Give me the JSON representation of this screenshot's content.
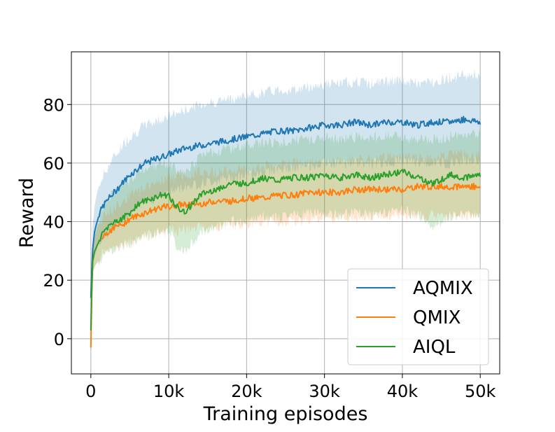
{
  "chart_data": {
    "type": "line",
    "title": "",
    "xlabel": "Training episodes",
    "ylabel": "Reward",
    "xlim": [
      -2500,
      52500
    ],
    "ylim": [
      -12,
      98
    ],
    "grid": true,
    "legend_position": "bottom-right",
    "x_ticks": [
      0,
      10000,
      20000,
      30000,
      40000,
      50000
    ],
    "x_tick_labels": [
      "0",
      "10k",
      "20k",
      "30k",
      "40k",
      "50k"
    ],
    "y_ticks": [
      0,
      20,
      40,
      60,
      80
    ],
    "y_tick_labels": [
      "0",
      "20",
      "40",
      "60",
      "80"
    ],
    "series": [
      {
        "name": "AQMIX",
        "color": "#1f77b4",
        "x": [
          0,
          200,
          500,
          1000,
          1500,
          2000,
          3000,
          4000,
          5000,
          6000,
          7000,
          8000,
          9000,
          10000,
          12000,
          14000,
          16000,
          18000,
          20000,
          22000,
          24000,
          26000,
          28000,
          30000,
          32000,
          34000,
          36000,
          38000,
          40000,
          42000,
          44000,
          46000,
          48000,
          50000
        ],
        "y": [
          14,
          30,
          37,
          42,
          45,
          47,
          50,
          53,
          56,
          58,
          60,
          61,
          62,
          63,
          65,
          66,
          67,
          68,
          69,
          70,
          71,
          71,
          72,
          73,
          73,
          74,
          73,
          74,
          74,
          73,
          74,
          74,
          75,
          74
        ],
        "upper": [
          16,
          38,
          46,
          52,
          55,
          58,
          62,
          66,
          69,
          71,
          73,
          74,
          75,
          76,
          78,
          80,
          81,
          82,
          83,
          84,
          85,
          85,
          86,
          87,
          87,
          88,
          87,
          88,
          88,
          87,
          88,
          89,
          90,
          90
        ],
        "lower": [
          12,
          24,
          29,
          32,
          35,
          36,
          38,
          40,
          43,
          45,
          47,
          48,
          49,
          50,
          52,
          53,
          54,
          55,
          56,
          57,
          58,
          58,
          59,
          60,
          60,
          60,
          60,
          60,
          61,
          60,
          60,
          60,
          61,
          60
        ]
      },
      {
        "name": "QMIX",
        "color": "#ff7f0e",
        "x": [
          0,
          200,
          500,
          1000,
          1500,
          2000,
          3000,
          4000,
          5000,
          6000,
          7000,
          8000,
          9000,
          10000,
          12000,
          14000,
          16000,
          18000,
          20000,
          22000,
          24000,
          26000,
          28000,
          30000,
          32000,
          34000,
          36000,
          38000,
          40000,
          42000,
          44000,
          46000,
          48000,
          50000
        ],
        "y": [
          -3,
          26,
          30,
          33,
          35,
          36,
          38,
          39,
          41,
          42,
          43,
          44,
          45,
          45,
          46,
          46,
          47,
          47,
          48,
          48,
          49,
          49,
          50,
          50,
          50,
          51,
          51,
          51,
          51,
          52,
          52,
          52,
          52,
          52
        ],
        "upper": [
          0,
          30,
          35,
          39,
          41,
          43,
          45,
          47,
          49,
          50,
          52,
          53,
          54,
          55,
          56,
          57,
          57,
          58,
          58,
          59,
          59,
          60,
          60,
          60,
          61,
          61,
          61,
          62,
          62,
          62,
          62,
          63,
          63,
          63
        ],
        "lower": [
          -5,
          22,
          25,
          27,
          29,
          30,
          31,
          32,
          33,
          34,
          35,
          36,
          36,
          37,
          37,
          38,
          38,
          39,
          39,
          40,
          40,
          40,
          41,
          41,
          41,
          41,
          42,
          42,
          42,
          42,
          42,
          42,
          42,
          42
        ]
      },
      {
        "name": "AIQL",
        "color": "#2ca02c",
        "x": [
          0,
          200,
          500,
          1000,
          1500,
          2000,
          3000,
          4000,
          5000,
          6000,
          7000,
          8000,
          9000,
          10000,
          11000,
          12000,
          13000,
          14000,
          16000,
          18000,
          20000,
          22000,
          24000,
          26000,
          28000,
          30000,
          32000,
          34000,
          36000,
          38000,
          40000,
          42000,
          44000,
          46000,
          48000,
          50000
        ],
        "y": [
          3,
          26,
          30,
          33,
          36,
          38,
          40,
          41,
          43,
          46,
          47,
          48,
          49,
          49,
          45,
          43,
          46,
          49,
          51,
          53,
          53,
          55,
          54,
          55,
          55,
          56,
          55,
          56,
          55,
          56,
          57,
          55,
          53,
          56,
          55,
          56
        ],
        "upper": [
          5,
          30,
          36,
          40,
          44,
          47,
          50,
          52,
          54,
          57,
          58,
          59,
          60,
          60,
          58,
          56,
          59,
          62,
          64,
          65,
          66,
          67,
          67,
          68,
          68,
          69,
          68,
          69,
          69,
          69,
          69,
          68,
          68,
          69,
          70,
          70
        ],
        "lower": [
          1,
          22,
          25,
          26,
          28,
          29,
          30,
          31,
          32,
          34,
          35,
          36,
          37,
          37,
          32,
          30,
          33,
          36,
          38,
          40,
          40,
          42,
          41,
          42,
          43,
          43,
          42,
          43,
          42,
          43,
          44,
          42,
          38,
          42,
          42,
          43
        ]
      }
    ]
  }
}
